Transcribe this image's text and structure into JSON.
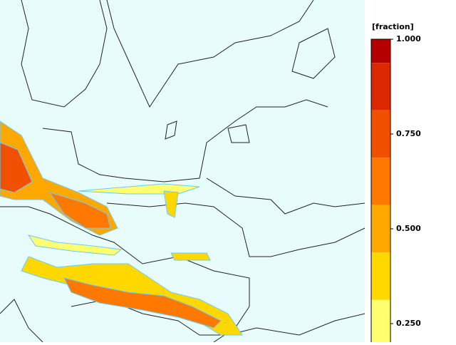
{
  "map": {
    "legend": {
      "title": "[fraction]",
      "vlim": [
        0.2,
        1
      ],
      "ticks": [
        {
          "value": 1,
          "label": "1.000"
        },
        {
          "value": 0.75,
          "label": "0.750"
        },
        {
          "value": 0.5,
          "label": "0.500"
        },
        {
          "value": 0.25,
          "label": "0.250"
        }
      ],
      "levels": [
        1,
        0.9375,
        0.8125,
        0.6875,
        0.5625,
        0.4375,
        0.3125,
        0.1875
      ],
      "colors": [
        "#b40000",
        "#dc2800",
        "#f05000",
        "#ff7800",
        "#ffa800",
        "#ffd800",
        "#ffff70"
      ]
    }
  }
}
